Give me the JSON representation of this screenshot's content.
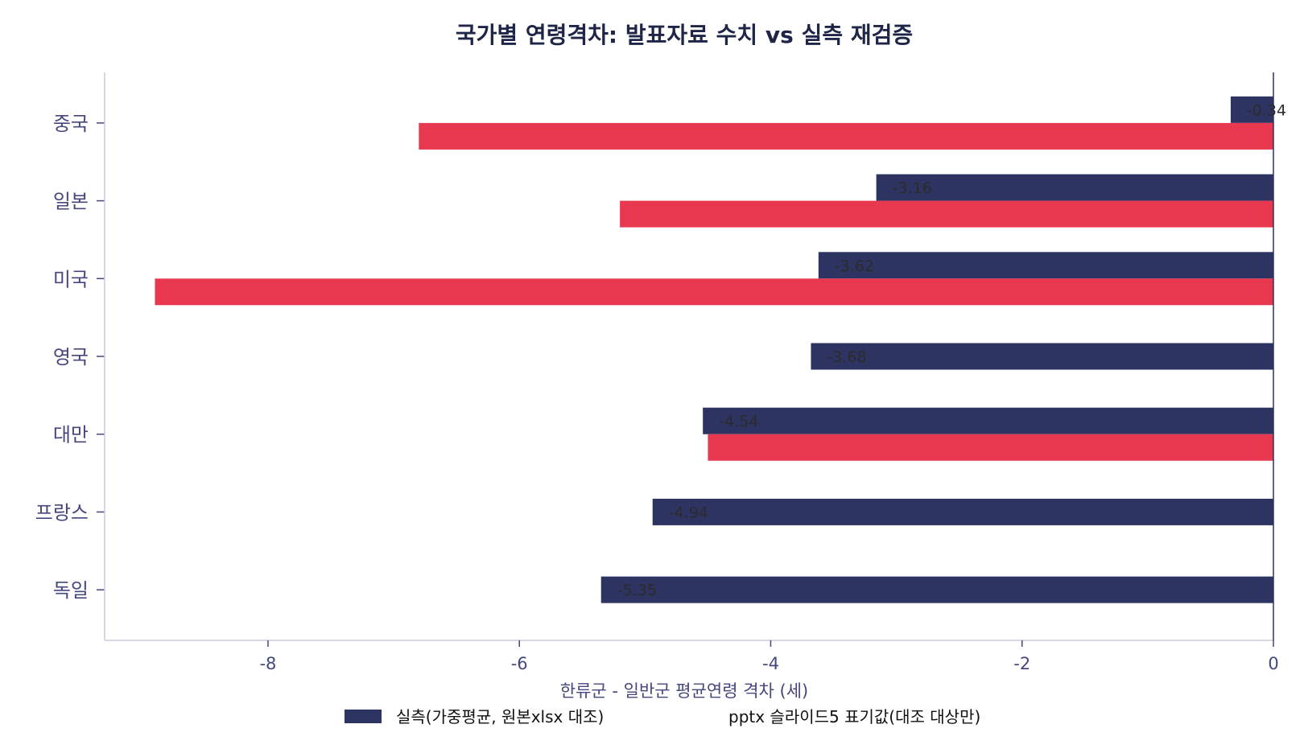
{
  "chart_data": {
    "type": "bar",
    "orientation": "horizontal",
    "title": "국가별 연령격차: 발표자료 수치 vs 실측 재검증",
    "xlabel": "한류군 - 일반군 평균연령 격차 (세)",
    "ylabel": "",
    "categories": [
      "중국",
      "일본",
      "미국",
      "영국",
      "대만",
      "프랑스",
      "독일"
    ],
    "xlim": [
      -9.3,
      0
    ],
    "xticks": [
      -8,
      -6,
      -4,
      -2,
      0
    ],
    "xtick_labels": [
      "-8",
      "-6",
      "-4",
      "-2",
      "0"
    ],
    "grid": false,
    "legend_position": "bottom-center",
    "series": [
      {
        "name": "실측(가중평균, 원본xlsx 대조)",
        "color": "#2e3462",
        "values": [
          -0.34,
          -3.16,
          -3.62,
          -3.68,
          -4.54,
          -4.94,
          -5.35
        ],
        "data_labels": [
          "-0.34",
          "-3.16",
          "-3.62",
          "-3.68",
          "-4.54",
          "-4.94",
          "-5.35"
        ]
      },
      {
        "name": "pptx 슬라이드5 표기값(대조 대상만)",
        "color": "#e8384f",
        "values": [
          -6.8,
          -5.2,
          -8.9,
          null,
          -4.5,
          null,
          null
        ]
      }
    ],
    "colors": {
      "title": "#1f2547",
      "axis_text": "#45487e",
      "axis_line": "#c8ccd8",
      "zero_line": "#2e3462",
      "data_label": "#2b2b2b"
    }
  }
}
